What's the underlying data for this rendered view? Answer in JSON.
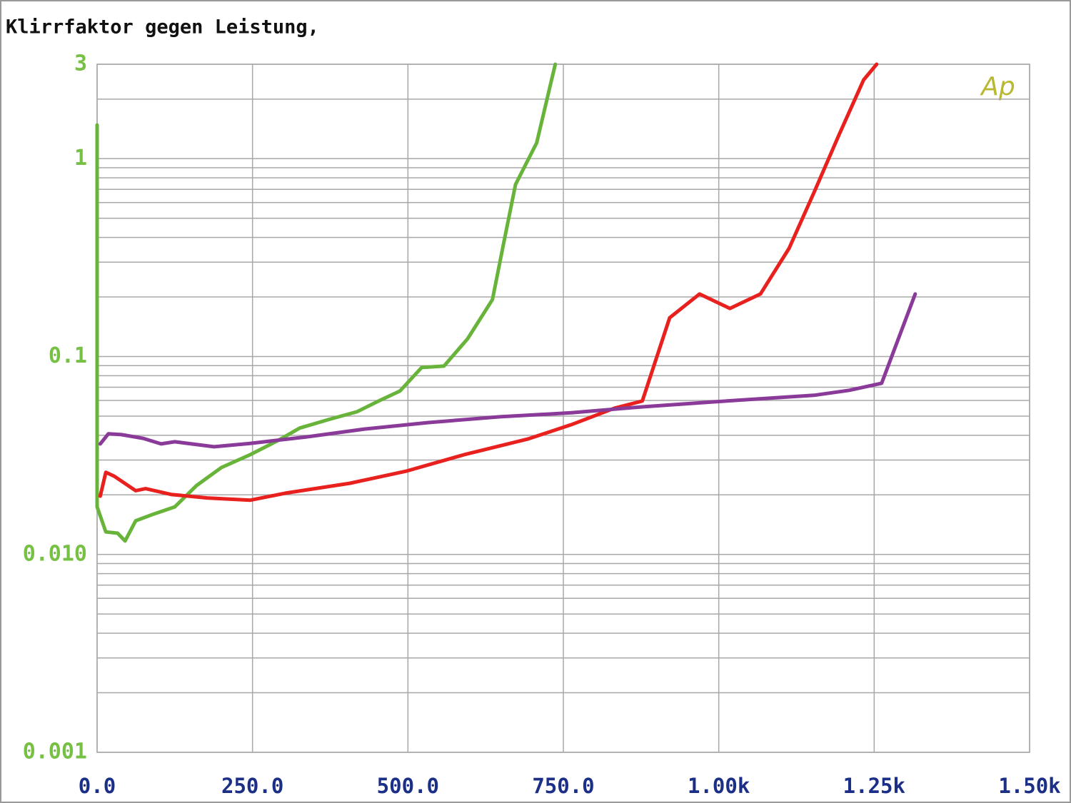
{
  "chart_data": {
    "type": "line",
    "title": "Klirrfaktor gegen Leistung,",
    "watermark": "Ap",
    "xlim": [
      0,
      1500
    ],
    "xticks": [
      {
        "value": 0,
        "label": "0.0"
      },
      {
        "value": 250,
        "label": "250.0"
      },
      {
        "value": 500,
        "label": "500.0"
      },
      {
        "value": 750,
        "label": "750.0"
      },
      {
        "value": 1000,
        "label": "1.00k"
      },
      {
        "value": 1250,
        "label": "1.25k"
      },
      {
        "value": 1500,
        "label": "1.50k"
      }
    ],
    "ylim": [
      0.001,
      3
    ],
    "yticks": [
      3,
      1,
      0.1,
      {
        "value": 0.01,
        "label": "0.010"
      },
      0.001
    ],
    "ylog": true,
    "grid": true,
    "series": [
      {
        "color": "#68b43a",
        "x": [
          0,
          0,
          14,
          33,
          45,
          62,
          91,
          125,
          160,
          200,
          246,
          292,
          326,
          372,
          418,
          453,
          487,
          522,
          558,
          596,
          636,
          653,
          673,
          707,
          737
        ],
        "values": [
          1.48,
          0.0174,
          0.013,
          0.0128,
          0.0117,
          0.0148,
          0.016,
          0.0174,
          0.0223,
          0.0275,
          0.0319,
          0.0378,
          0.0435,
          0.048,
          0.0526,
          0.0596,
          0.0669,
          0.088,
          0.0895,
          0.123,
          0.194,
          0.36,
          0.74,
          1.2,
          3
        ]
      },
      {
        "color": "#e8201e",
        "x": [
          5,
          14,
          28,
          62,
          78,
          119,
          177,
          246,
          303,
          407,
          498,
          590,
          694,
          763,
          832,
          877,
          921,
          969,
          1018,
          1067,
          1113,
          1153,
          1193,
          1233,
          1254
        ],
        "values": [
          0.0197,
          0.026,
          0.0248,
          0.021,
          0.0215,
          0.0201,
          0.0193,
          0.0188,
          0.0204,
          0.0229,
          0.0264,
          0.0319,
          0.0384,
          0.0453,
          0.0548,
          0.0596,
          0.157,
          0.207,
          0.175,
          0.207,
          0.352,
          0.673,
          1.31,
          2.5,
          3
        ]
      },
      {
        "color": "#8a3a98",
        "x": [
          5,
          18,
          39,
          74,
          103,
          125,
          188,
          246,
          338,
          430,
          533,
          648,
          763,
          877,
          992,
          1153,
          1210,
          1262,
          1316
        ],
        "values": [
          0.0362,
          0.0407,
          0.0403,
          0.0386,
          0.0362,
          0.0371,
          0.035,
          0.0364,
          0.0393,
          0.043,
          0.0464,
          0.0496,
          0.052,
          0.0557,
          0.059,
          0.0637,
          0.0675,
          0.0733,
          0.207
        ]
      }
    ]
  }
}
